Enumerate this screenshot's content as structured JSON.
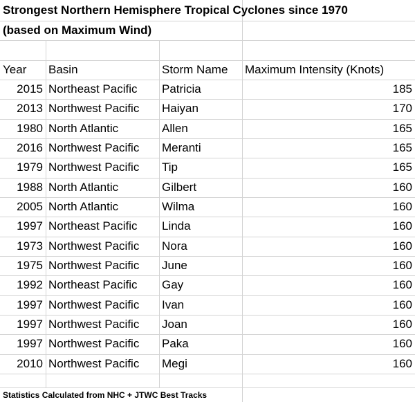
{
  "title": "Strongest Northern Hemisphere Tropical Cyclones since 1970",
  "subtitle": "(based on Maximum Wind)",
  "table": {
    "headers": [
      "Year",
      "Basin",
      "Storm Name",
      "Maximum Intensity (Knots)"
    ],
    "rows": [
      [
        2015,
        "Northeast Pacific",
        "Patricia",
        185
      ],
      [
        2013,
        "Northwest Pacific",
        "Haiyan",
        170
      ],
      [
        1980,
        "North Atlantic",
        "Allen",
        165
      ],
      [
        2016,
        "Northwest Pacific",
        "Meranti",
        165
      ],
      [
        1979,
        "Northwest Pacific",
        "Tip",
        165
      ],
      [
        1988,
        "North Atlantic",
        "Gilbert",
        160
      ],
      [
        2005,
        "North Atlantic",
        "Wilma",
        160
      ],
      [
        1997,
        "Northeast Pacific",
        "Linda",
        160
      ],
      [
        1973,
        "Northwest Pacific",
        "Nora",
        160
      ],
      [
        1975,
        "Northwest Pacific",
        "June",
        160
      ],
      [
        1992,
        "Northeast Pacific",
        "Gay",
        160
      ],
      [
        1997,
        "Northwest Pacific",
        "Ivan",
        160
      ],
      [
        1997,
        "Northwest Pacific",
        "Joan",
        160
      ],
      [
        1997,
        "Northwest Pacific",
        "Paka",
        160
      ],
      [
        2010,
        "Northwest Pacific",
        "Megi",
        160
      ]
    ]
  },
  "footer": "Statistics Calculated from NHC + JTWC Best Tracks"
}
